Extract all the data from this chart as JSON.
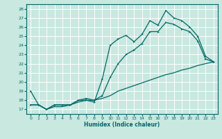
{
  "xlabel": "Humidex (Indice chaleur)",
  "xlim": [
    -0.5,
    23.5
  ],
  "ylim": [
    16.5,
    28.5
  ],
  "yticks": [
    17,
    18,
    19,
    20,
    21,
    22,
    23,
    24,
    25,
    26,
    27,
    28
  ],
  "xticks": [
    0,
    1,
    2,
    3,
    4,
    5,
    6,
    7,
    8,
    9,
    10,
    11,
    12,
    13,
    14,
    15,
    16,
    17,
    18,
    19,
    20,
    21,
    22,
    23
  ],
  "bg_color": "#c8e8e0",
  "line_color": "#006666",
  "grid_color": "#ffffff",
  "line1_y": [
    19.0,
    17.5,
    17.0,
    17.5,
    17.5,
    17.5,
    18.0,
    18.0,
    17.8,
    20.3,
    24.0,
    24.7,
    25.1,
    24.4,
    25.2,
    26.7,
    26.2,
    27.8,
    27.0,
    26.7,
    26.0,
    25.0,
    22.8,
    22.2
  ],
  "line2_y": [
    17.5,
    17.5,
    17.0,
    17.5,
    17.5,
    17.5,
    18.0,
    18.2,
    18.0,
    18.5,
    20.5,
    22.0,
    23.0,
    23.5,
    24.2,
    25.5,
    25.5,
    26.5,
    26.3,
    25.8,
    25.5,
    24.5,
    22.5,
    22.2
  ],
  "line3_y": [
    17.5,
    17.5,
    17.0,
    17.3,
    17.3,
    17.5,
    17.8,
    18.0,
    18.0,
    18.2,
    18.5,
    19.0,
    19.3,
    19.6,
    19.9,
    20.2,
    20.5,
    20.8,
    21.0,
    21.3,
    21.5,
    21.8,
    22.0,
    22.2
  ]
}
